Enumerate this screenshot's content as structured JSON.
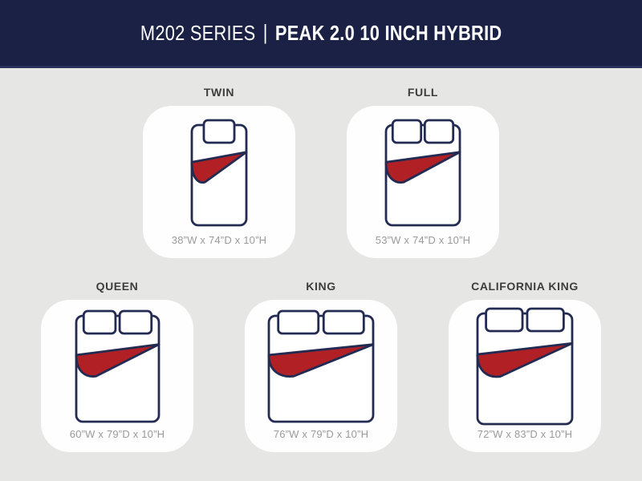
{
  "header": {
    "series": "M202 SERIES",
    "separator": "|",
    "product": "PEAK 2.0 10 INCH HYBRID"
  },
  "colors": {
    "header_background": "#1a2144",
    "header_text": "#ffffff",
    "page_background": "#e6e6e4",
    "card_background": "#fefefe",
    "outline_navy": "#232b52",
    "blanket_red": "#b02025",
    "size_label_text": "#3d3d3d",
    "dimensions_text": "#9a9a9a"
  },
  "sizes": [
    {
      "id": "twin",
      "name": "TWIN",
      "dimensions": "38”W x 74”D x 10”H",
      "pillows": 1
    },
    {
      "id": "full",
      "name": "FULL",
      "dimensions": "53”W x 74”D x 10”H",
      "pillows": 2
    },
    {
      "id": "queen",
      "name": "QUEEN",
      "dimensions": "60”W x 79”D x 10”H",
      "pillows": 2
    },
    {
      "id": "king",
      "name": "KING",
      "dimensions": "76”W x 79”D x 10”H",
      "pillows": 2
    },
    {
      "id": "california-king",
      "name": "CALIFORNIA KING",
      "dimensions": "72”W x 83”D x 10”H",
      "pillows": 2
    }
  ]
}
